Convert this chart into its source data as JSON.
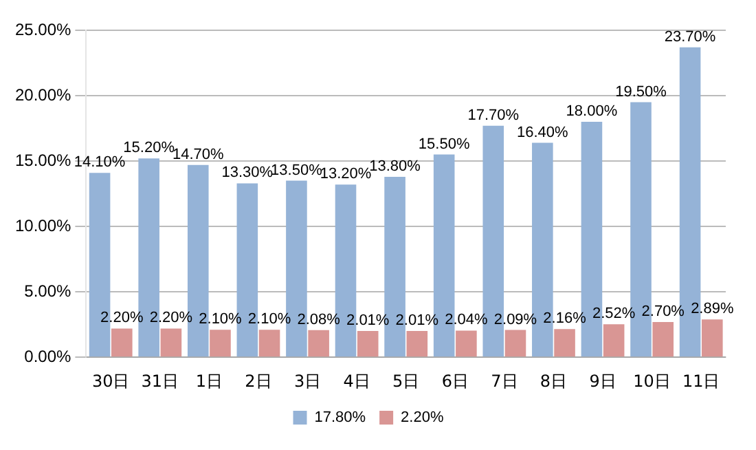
{
  "chart_data": {
    "type": "bar",
    "categories": [
      "30日",
      "31日",
      "1日",
      "2日",
      "3日",
      "4日",
      "5日",
      "6日",
      "7日",
      "8日",
      "9日",
      "10日",
      "11日"
    ],
    "series": [
      {
        "name": "17.80%",
        "color": "#95b3d7",
        "values": [
          14.1,
          15.2,
          14.7,
          13.3,
          13.5,
          13.2,
          13.8,
          15.5,
          17.7,
          16.4,
          18.0,
          19.5,
          23.7
        ],
        "value_labels": [
          "14.10%",
          "15.20%",
          "14.70%",
          "13.30%",
          "13.50%",
          "13.20%",
          "13.80%",
          "15.50%",
          "17.70%",
          "16.40%",
          "18.00%",
          "19.50%",
          "23.70%"
        ]
      },
      {
        "name": "2.20%",
        "color": "#d99694",
        "values": [
          2.2,
          2.2,
          2.1,
          2.1,
          2.08,
          2.01,
          2.01,
          2.04,
          2.09,
          2.16,
          2.52,
          2.7,
          2.89
        ],
        "value_labels": [
          "2.20%",
          "2.20%",
          "2.10%",
          "2.10%",
          "2.08%",
          "2.01%",
          "2.01%",
          "2.04%",
          "2.09%",
          "2.16%",
          "2.52%",
          "2.70%",
          "2.89%"
        ]
      }
    ],
    "ylim": [
      0,
      25
    ],
    "yticks": [
      {
        "value": 0,
        "label": "0.00%"
      },
      {
        "value": 5,
        "label": "5.00%"
      },
      {
        "value": 10,
        "label": "10.00%"
      },
      {
        "value": 15,
        "label": "15.00%"
      },
      {
        "value": 20,
        "label": "20.00%"
      },
      {
        "value": 25,
        "label": "25.00%"
      }
    ],
    "grid": "y",
    "legend": "bottom"
  }
}
